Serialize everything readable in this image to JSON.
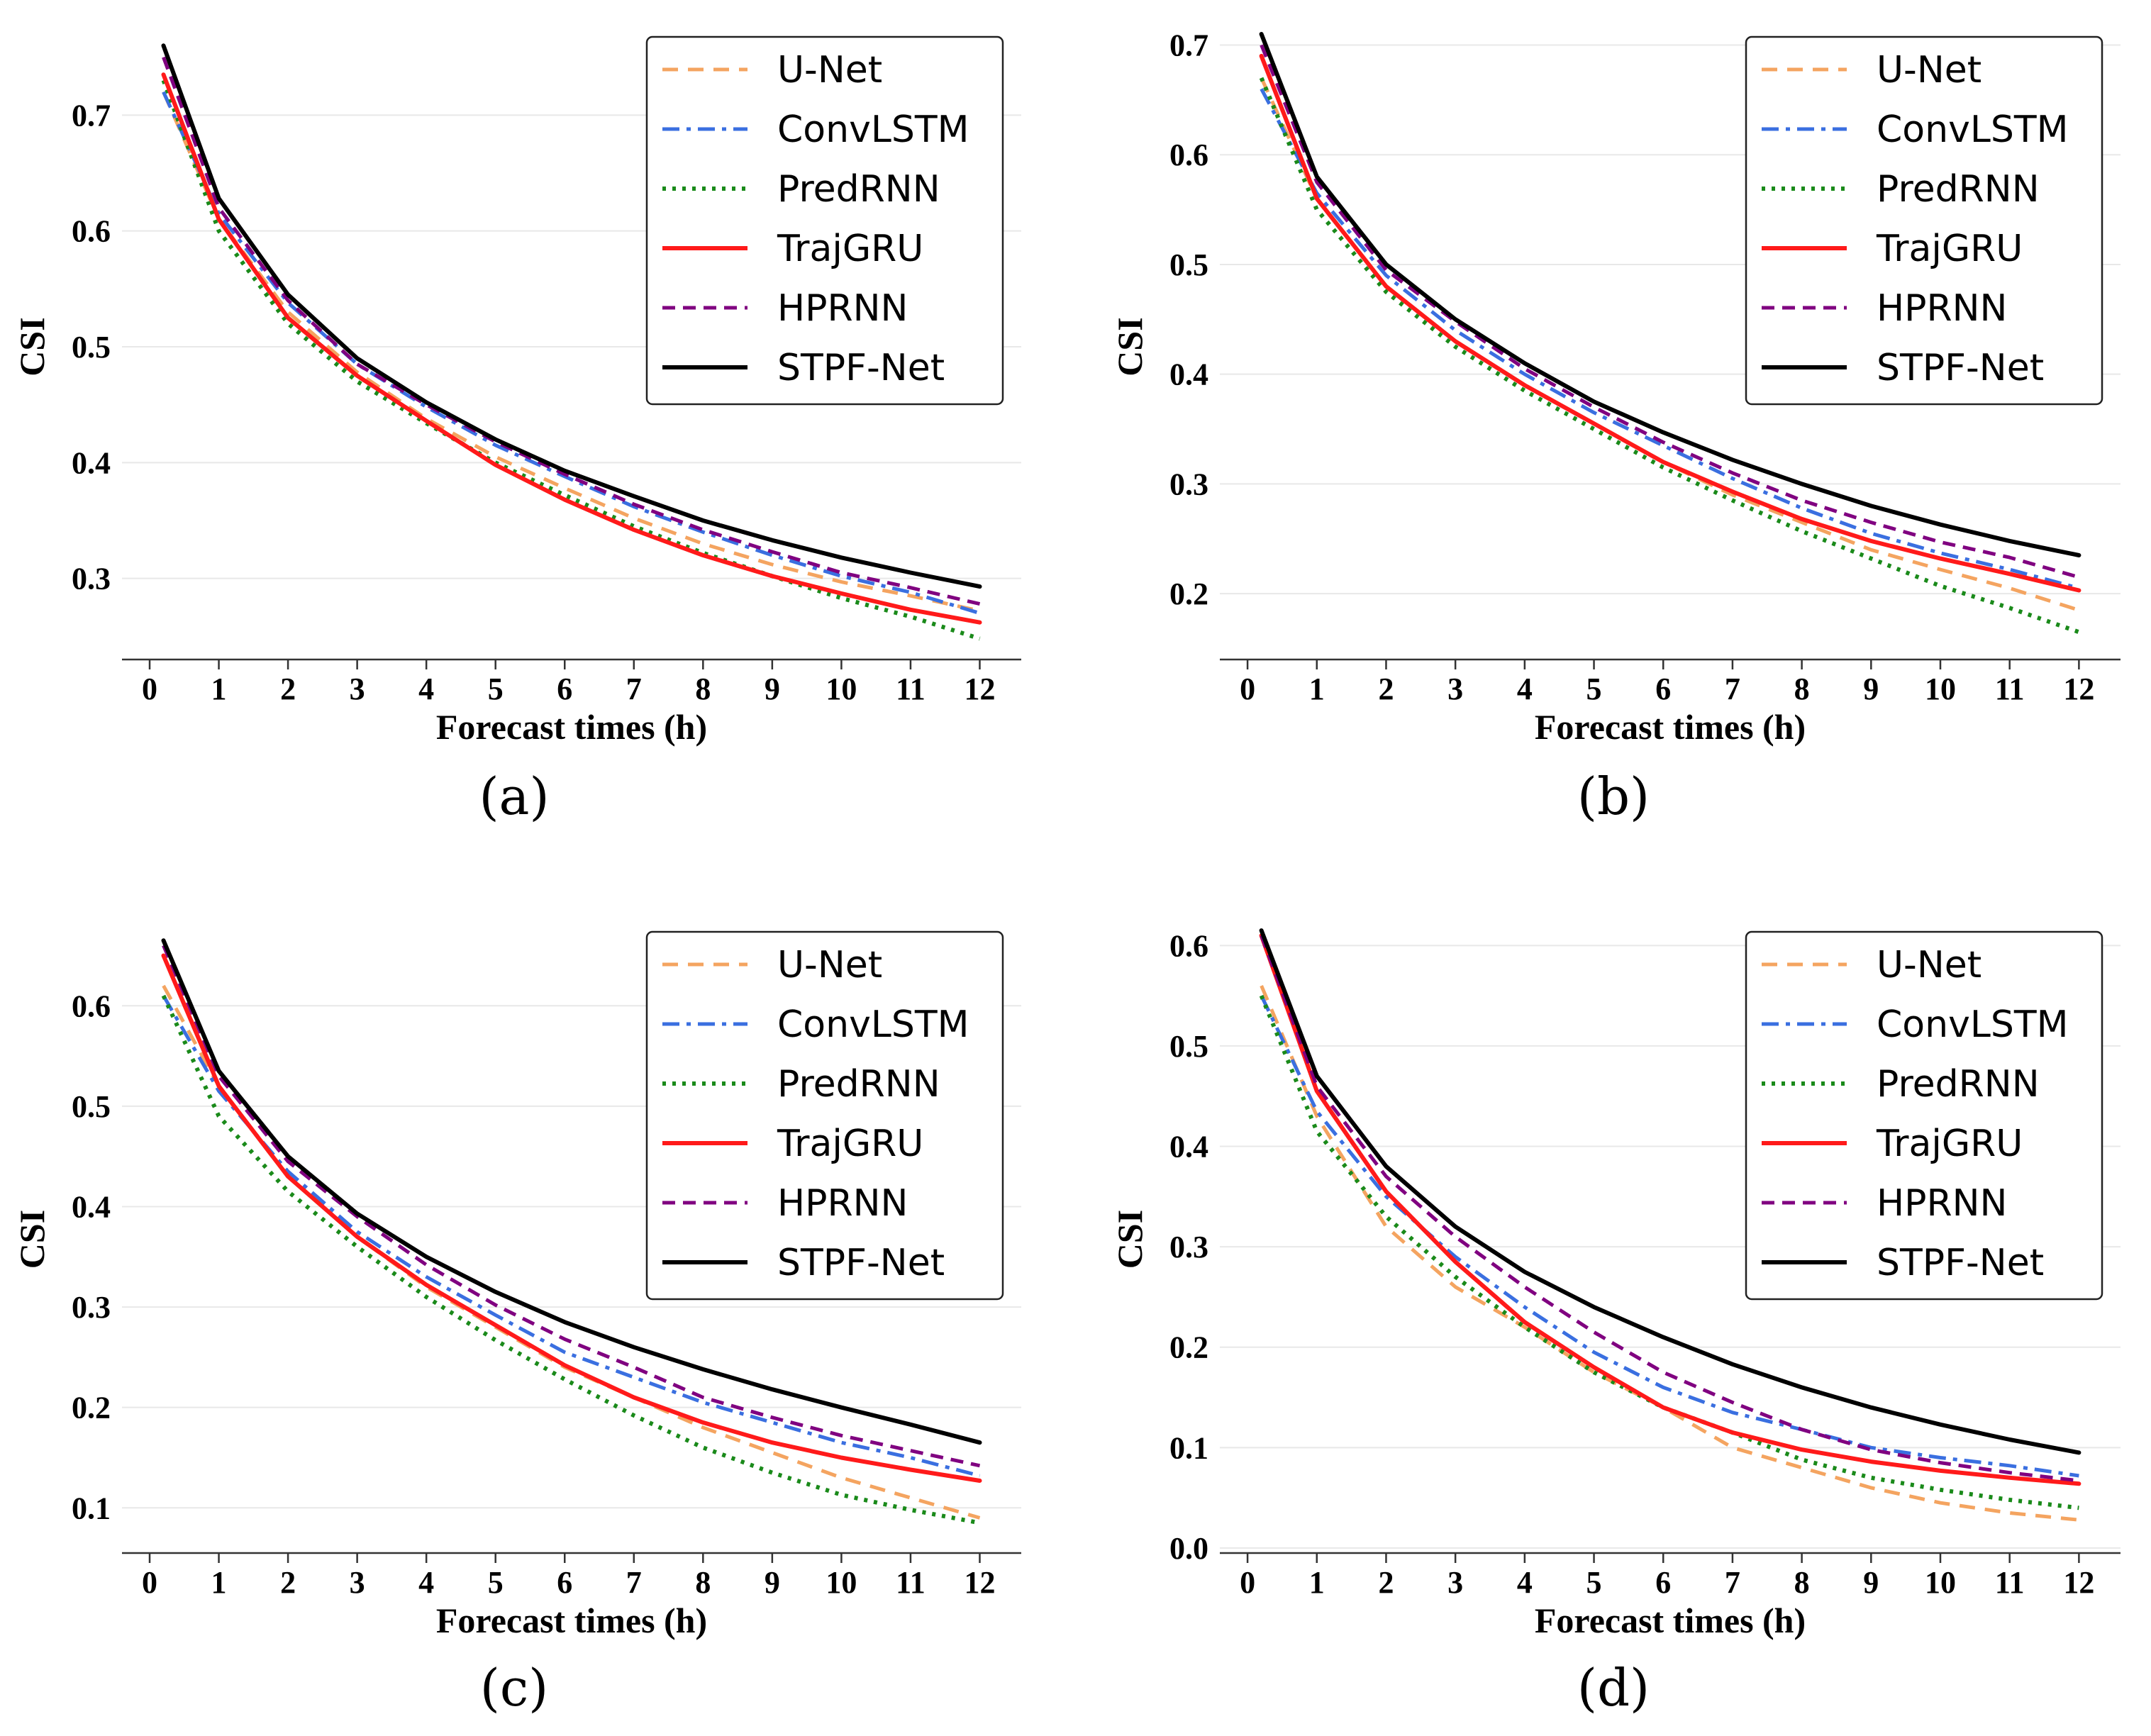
{
  "figure": {
    "panel_captions": [
      "(a)",
      "(b)",
      "(c)",
      "(d)"
    ]
  },
  "chart_data": [
    {
      "type": "line",
      "caption": "(a)",
      "xlabel": "Forecast times (h)",
      "ylabel": "CSI",
      "xlim": [
        -0.4,
        12.6
      ],
      "ylim": [
        0.23,
        0.77
      ],
      "xticks": [
        0,
        1,
        2,
        3,
        4,
        5,
        6,
        7,
        8,
        9,
        10,
        11,
        12
      ],
      "yticks": [
        0.3,
        0.4,
        0.5,
        0.6,
        0.7
      ],
      "x": [
        0.2,
        1,
        2,
        3,
        4,
        5,
        6,
        7,
        8,
        9,
        10,
        11,
        12
      ],
      "series": [
        {
          "name": "U-Net",
          "values": [
            0.72,
            0.61,
            0.53,
            0.478,
            0.438,
            0.405,
            0.378,
            0.352,
            0.33,
            0.312,
            0.297,
            0.285,
            0.272
          ]
        },
        {
          "name": "ConvLSTM",
          "values": [
            0.72,
            0.615,
            0.538,
            0.485,
            0.448,
            0.415,
            0.388,
            0.362,
            0.34,
            0.32,
            0.302,
            0.288,
            0.27
          ]
        },
        {
          "name": "PredRNN",
          "values": [
            0.73,
            0.6,
            0.52,
            0.47,
            0.434,
            0.4,
            0.372,
            0.345,
            0.322,
            0.302,
            0.283,
            0.267,
            0.248
          ]
        },
        {
          "name": "TrajGRU",
          "values": [
            0.735,
            0.61,
            0.525,
            0.475,
            0.436,
            0.398,
            0.368,
            0.342,
            0.32,
            0.302,
            0.287,
            0.273,
            0.262
          ]
        },
        {
          "name": "HPRNN",
          "values": [
            0.75,
            0.62,
            0.54,
            0.485,
            0.45,
            0.418,
            0.39,
            0.364,
            0.342,
            0.323,
            0.305,
            0.292,
            0.278
          ]
        },
        {
          "name": "STPF-Net",
          "values": [
            0.76,
            0.628,
            0.545,
            0.49,
            0.452,
            0.42,
            0.393,
            0.371,
            0.35,
            0.333,
            0.318,
            0.305,
            0.293
          ]
        }
      ]
    },
    {
      "type": "line",
      "caption": "(b)",
      "xlabel": "Forecast times (h)",
      "ylabel": "CSI",
      "xlim": [
        -0.4,
        12.6
      ],
      "ylim": [
        0.14,
        0.71
      ],
      "xticks": [
        0,
        1,
        2,
        3,
        4,
        5,
        6,
        7,
        8,
        9,
        10,
        11,
        12
      ],
      "yticks": [
        0.2,
        0.3,
        0.4,
        0.5,
        0.6,
        0.7
      ],
      "x": [
        0.2,
        1,
        2,
        3,
        4,
        5,
        6,
        7,
        8,
        9,
        10,
        11,
        12
      ],
      "series": [
        {
          "name": "U-Net",
          "values": [
            0.67,
            0.56,
            0.48,
            0.43,
            0.39,
            0.355,
            0.32,
            0.29,
            0.265,
            0.24,
            0.222,
            0.205,
            0.185
          ]
        },
        {
          "name": "ConvLSTM",
          "values": [
            0.66,
            0.565,
            0.49,
            0.44,
            0.4,
            0.365,
            0.335,
            0.305,
            0.278,
            0.255,
            0.237,
            0.222,
            0.205
          ]
        },
        {
          "name": "PredRNN",
          "values": [
            0.67,
            0.55,
            0.475,
            0.425,
            0.385,
            0.35,
            0.315,
            0.285,
            0.257,
            0.232,
            0.207,
            0.187,
            0.165
          ]
        },
        {
          "name": "TrajGRU",
          "values": [
            0.69,
            0.56,
            0.48,
            0.43,
            0.39,
            0.355,
            0.32,
            0.293,
            0.268,
            0.248,
            0.232,
            0.218,
            0.203
          ]
        },
        {
          "name": "HPRNN",
          "values": [
            0.7,
            0.575,
            0.495,
            0.448,
            0.405,
            0.37,
            0.338,
            0.31,
            0.285,
            0.265,
            0.247,
            0.233,
            0.215
          ]
        },
        {
          "name": "STPF-Net",
          "values": [
            0.71,
            0.58,
            0.5,
            0.45,
            0.41,
            0.375,
            0.347,
            0.322,
            0.3,
            0.28,
            0.263,
            0.248,
            0.235
          ]
        }
      ]
    },
    {
      "type": "line",
      "caption": "(c)",
      "xlabel": "Forecast times (h)",
      "ylabel": "CSI",
      "xlim": [
        -0.4,
        12.6
      ],
      "ylim": [
        0.055,
        0.68
      ],
      "xticks": [
        0,
        1,
        2,
        3,
        4,
        5,
        6,
        7,
        8,
        9,
        10,
        11,
        12
      ],
      "yticks": [
        0.1,
        0.2,
        0.3,
        0.4,
        0.5,
        0.6
      ],
      "x": [
        0.2,
        1,
        2,
        3,
        4,
        5,
        6,
        7,
        8,
        9,
        10,
        11,
        12
      ],
      "series": [
        {
          "name": "U-Net",
          "values": [
            0.62,
            0.52,
            0.43,
            0.37,
            0.32,
            0.28,
            0.24,
            0.21,
            0.18,
            0.155,
            0.13,
            0.11,
            0.09
          ]
        },
        {
          "name": "ConvLSTM",
          "values": [
            0.61,
            0.515,
            0.435,
            0.375,
            0.33,
            0.292,
            0.255,
            0.23,
            0.205,
            0.185,
            0.165,
            0.15,
            0.132
          ]
        },
        {
          "name": "PredRNN",
          "values": [
            0.61,
            0.49,
            0.415,
            0.36,
            0.31,
            0.267,
            0.228,
            0.192,
            0.16,
            0.135,
            0.113,
            0.098,
            0.085
          ]
        },
        {
          "name": "TrajGRU",
          "values": [
            0.65,
            0.52,
            0.43,
            0.37,
            0.322,
            0.282,
            0.242,
            0.21,
            0.185,
            0.165,
            0.15,
            0.138,
            0.127
          ]
        },
        {
          "name": "HPRNN",
          "values": [
            0.66,
            0.53,
            0.445,
            0.39,
            0.342,
            0.302,
            0.268,
            0.24,
            0.21,
            0.19,
            0.172,
            0.157,
            0.142
          ]
        },
        {
          "name": "STPF-Net",
          "values": [
            0.665,
            0.535,
            0.45,
            0.393,
            0.35,
            0.315,
            0.285,
            0.26,
            0.238,
            0.218,
            0.2,
            0.183,
            0.165
          ]
        }
      ]
    },
    {
      "type": "line",
      "caption": "(d)",
      "xlabel": "Forecast times (h)",
      "ylabel": "CSI",
      "xlim": [
        -0.4,
        12.6
      ],
      "ylim": [
        -0.005,
        0.62
      ],
      "xticks": [
        0,
        1,
        2,
        3,
        4,
        5,
        6,
        7,
        8,
        9,
        10,
        11,
        12
      ],
      "yticks": [
        0.0,
        0.1,
        0.2,
        0.3,
        0.4,
        0.5,
        0.6
      ],
      "x": [
        0.2,
        1,
        2,
        3,
        4,
        5,
        6,
        7,
        8,
        9,
        10,
        11,
        12
      ],
      "series": [
        {
          "name": "U-Net",
          "values": [
            0.56,
            0.43,
            0.32,
            0.26,
            0.22,
            0.175,
            0.14,
            0.1,
            0.08,
            0.06,
            0.045,
            0.035,
            0.028
          ]
        },
        {
          "name": "ConvLSTM",
          "values": [
            0.55,
            0.435,
            0.35,
            0.29,
            0.24,
            0.195,
            0.16,
            0.135,
            0.118,
            0.1,
            0.09,
            0.082,
            0.072
          ]
        },
        {
          "name": "PredRNN",
          "values": [
            0.55,
            0.415,
            0.33,
            0.27,
            0.22,
            0.175,
            0.14,
            0.115,
            0.088,
            0.07,
            0.058,
            0.048,
            0.04
          ]
        },
        {
          "name": "TrajGRU",
          "values": [
            0.61,
            0.455,
            0.355,
            0.285,
            0.225,
            0.18,
            0.14,
            0.115,
            0.098,
            0.086,
            0.077,
            0.07,
            0.064
          ]
        },
        {
          "name": "HPRNN",
          "values": [
            0.61,
            0.46,
            0.37,
            0.31,
            0.26,
            0.215,
            0.175,
            0.145,
            0.118,
            0.098,
            0.085,
            0.075,
            0.067
          ]
        },
        {
          "name": "STPF-Net",
          "values": [
            0.615,
            0.47,
            0.38,
            0.32,
            0.275,
            0.24,
            0.21,
            0.183,
            0.16,
            0.14,
            0.123,
            0.108,
            0.095
          ]
        }
      ]
    }
  ],
  "series_styles": [
    {
      "name": "U-Net",
      "color": "#f4a460",
      "dash": "22,14",
      "width": 5
    },
    {
      "name": "ConvLSTM",
      "color": "#3a6fe0",
      "dash": "24,10,6,10",
      "width": 5
    },
    {
      "name": "PredRNN",
      "color": "#1a8a1a",
      "dash": "5,9",
      "width": 6
    },
    {
      "name": "TrajGRU",
      "color": "#ff1a1a",
      "dash": "",
      "width": 6
    },
    {
      "name": "HPRNN",
      "color": "#800080",
      "dash": "18,11",
      "width": 5
    },
    {
      "name": "STPF-Net",
      "color": "#000000",
      "dash": "",
      "width": 6
    }
  ]
}
